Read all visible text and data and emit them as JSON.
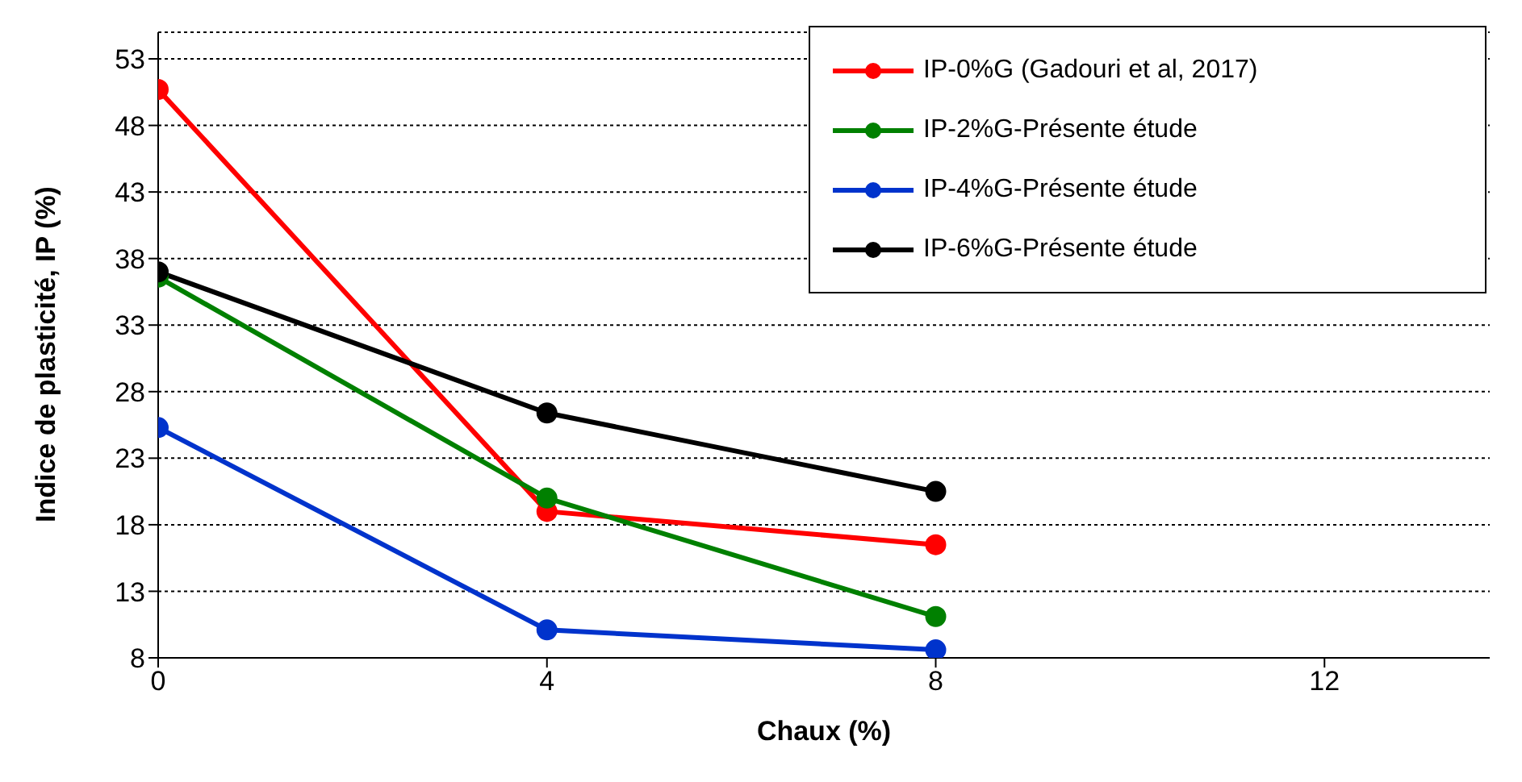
{
  "chart_data": {
    "type": "line",
    "xlabel": "Chaux (%)",
    "ylabel": "Indice de plasticité, IP (%)",
    "x": [
      0,
      4,
      8
    ],
    "series": [
      {
        "name": "IP-0%G (Gadouri et al, 2017)",
        "color": "#ff0000",
        "values": [
          50.7,
          19.0,
          16.5
        ]
      },
      {
        "name": "IP-2%G-Présente étude",
        "color": "#008000",
        "values": [
          36.6,
          20.0,
          11.1
        ]
      },
      {
        "name": "IP-4%G-Présente étude",
        "color": "#0033cc",
        "values": [
          25.3,
          10.1,
          8.6
        ]
      },
      {
        "name": "IP-6%G-Présente étude",
        "color": "#000000",
        "values": [
          37.0,
          26.4,
          20.5
        ]
      }
    ],
    "xlim": [
      0,
      13.7
    ],
    "xticks": [
      0,
      4,
      8,
      12
    ],
    "ylim": [
      8,
      55
    ],
    "yticks": [
      8,
      13,
      18,
      23,
      28,
      33,
      38,
      43,
      48,
      53
    ],
    "grid": "y",
    "legend": "top right",
    "marker": "circle",
    "line_style": "solid"
  }
}
